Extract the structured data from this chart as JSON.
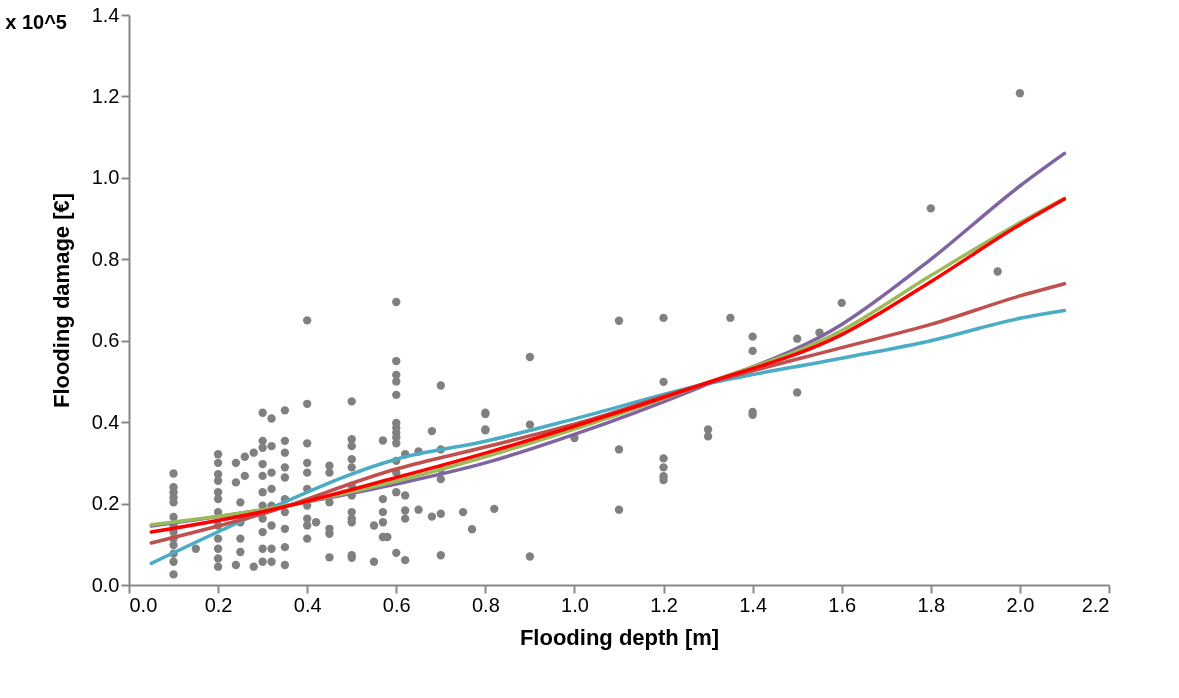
{
  "chart_data": {
    "type": "scatter",
    "xlabel": "Flooding depth [m]",
    "ylabel": "Flooding damage   [€]",
    "annotations": [
      "x 10^5"
    ],
    "xlim": [
      0,
      2.2
    ],
    "ylim": [
      0,
      1.4
    ],
    "xticks": [
      {
        "value": 0,
        "label": "0.0"
      },
      0.2,
      0.4,
      0.6,
      0.8,
      {
        "value": 1,
        "label": "1.0"
      },
      1.2,
      1.4,
      1.6,
      1.8,
      {
        "value": 2,
        "label": "2.0"
      },
      2.2
    ],
    "yticks": [
      {
        "value": 0,
        "label": "0.0"
      },
      0.2,
      0.4,
      0.6,
      0.8,
      {
        "value": 1,
        "label": "1.0"
      },
      1.2,
      1.4
    ],
    "grid": false,
    "line_style": "solid",
    "series": [
      {
        "marker": "circle",
        "color": "#808080",
        "x": [
          0.1,
          0.1,
          0.1,
          0.1,
          0.1,
          0.1,
          0.1,
          0.1,
          0.1,
          0.1,
          0.1,
          0.1,
          0.1,
          0.15,
          0.2,
          0.2,
          0.2,
          0.2,
          0.2,
          0.2,
          0.2,
          0.2,
          0.2,
          0.2,
          0.2,
          0.2,
          0.26,
          0.24,
          0.26,
          0.24,
          0.25,
          0.25,
          0.25,
          0.25,
          0.24,
          0.28,
          0.28,
          0.3,
          0.3,
          0.3,
          0.3,
          0.3,
          0.3,
          0.3,
          0.3,
          0.3,
          0.3,
          0.3,
          0.32,
          0.32,
          0.32,
          0.32,
          0.32,
          0.32,
          0.32,
          0.32,
          0.35,
          0.35,
          0.35,
          0.35,
          0.35,
          0.35,
          0.35,
          0.35,
          0.35,
          0.35,
          0.4,
          0.4,
          0.4,
          0.4,
          0.4,
          0.4,
          0.4,
          0.4,
          0.4,
          0.4,
          0.42,
          0.45,
          0.45,
          0.45,
          0.45,
          0.45,
          0.45,
          0.5,
          0.5,
          0.5,
          0.5,
          0.5,
          0.5,
          0.5,
          0.5,
          0.5,
          0.5,
          0.5,
          0.5,
          0.55,
          0.55,
          0.57,
          0.57,
          0.57,
          0.57,
          0.57,
          0.58,
          0.6,
          0.6,
          0.6,
          0.6,
          0.6,
          0.6,
          0.6,
          0.6,
          0.6,
          0.6,
          0.6,
          0.6,
          0.6,
          0.6,
          0.62,
          0.62,
          0.62,
          0.62,
          0.62,
          0.65,
          0.65,
          0.68,
          0.68,
          0.7,
          0.7,
          0.7,
          0.7,
          0.7,
          0.7,
          0.75,
          0.77,
          0.8,
          0.8,
          0.8,
          0.8,
          0.82,
          0.9,
          0.9,
          0.9,
          1.0,
          1.1,
          1.1,
          1.1,
          1.2,
          1.2,
          1.2,
          1.2,
          1.2,
          1.2,
          1.3,
          1.3,
          1.35,
          1.4,
          1.4,
          1.4,
          1.4,
          1.5,
          1.5,
          1.55,
          1.6,
          1.8,
          1.95,
          2.0
        ],
        "values": [
          0.274,
          0.24,
          0.228,
          0.215,
          0.203,
          0.167,
          0.146,
          0.13,
          0.114,
          0.098,
          0.077,
          0.057,
          0.026,
          0.089,
          0.321,
          0.3,
          0.272,
          0.256,
          0.228,
          0.211,
          0.179,
          0.146,
          0.114,
          0.089,
          0.065,
          0.045,
          0.315,
          0.3,
          0.268,
          0.252,
          0.203,
          0.154,
          0.114,
          0.081,
          0.049,
          0.325,
          0.045,
          0.423,
          0.354,
          0.337,
          0.297,
          0.268,
          0.228,
          0.195,
          0.163,
          0.13,
          0.089,
          0.057,
          0.409,
          0.341,
          0.276,
          0.236,
          0.195,
          0.146,
          0.089,
          0.057,
          0.429,
          0.354,
          0.325,
          0.289,
          0.264,
          0.211,
          0.179,
          0.138,
          0.093,
          0.049,
          0.65,
          0.445,
          0.348,
          0.3,
          0.276,
          0.236,
          0.195,
          0.163,
          0.146,
          0.114,
          0.154,
          0.293,
          0.276,
          0.203,
          0.138,
          0.126,
          0.068,
          0.451,
          0.358,
          0.341,
          0.309,
          0.289,
          0.244,
          0.22,
          0.179,
          0.163,
          0.154,
          0.073,
          0.067,
          0.146,
          0.057,
          0.355,
          0.211,
          0.179,
          0.154,
          0.118,
          0.118,
          0.695,
          0.55,
          0.516,
          0.5,
          0.467,
          0.398,
          0.386,
          0.374,
          0.362,
          0.348,
          0.305,
          0.276,
          0.228,
          0.079,
          0.321,
          0.22,
          0.183,
          0.163,
          0.061,
          0.328,
          0.185,
          0.378,
          0.168,
          0.49,
          0.333,
          0.285,
          0.26,
          0.175,
          0.073,
          0.179,
          0.137,
          0.423,
          0.382,
          0.42,
          0.38,
          0.187,
          0.56,
          0.394,
          0.07,
          0.361,
          0.649,
          0.333,
          0.185,
          0.656,
          0.499,
          0.311,
          0.289,
          0.267,
          0.258,
          0.382,
          0.365,
          0.656,
          0.61,
          0.575,
          0.425,
          0.418,
          0.605,
          0.473,
          0.62,
          0.693,
          0.925,
          0.77,
          1.208
        ]
      },
      {
        "type": "line",
        "color": "#4bacc6",
        "x": [
          0.05,
          0.3,
          0.6,
          0.8,
          1.0,
          1.28,
          1.6,
          1.8,
          2.0,
          2.1
        ],
        "values": [
          0.053,
          0.18,
          0.309,
          0.353,
          0.408,
          0.49,
          0.557,
          0.6,
          0.655,
          0.674
        ]
      },
      {
        "type": "line",
        "color": "#c0504d",
        "x": [
          0.05,
          0.3,
          0.6,
          0.8,
          1.0,
          1.28,
          1.6,
          1.8,
          2.0,
          2.1
        ],
        "values": [
          0.103,
          0.175,
          0.285,
          0.339,
          0.395,
          0.49,
          0.583,
          0.64,
          0.71,
          0.74
        ]
      },
      {
        "type": "line",
        "color": "#8064a2",
        "x": [
          0.05,
          0.3,
          0.6,
          0.8,
          1.0,
          1.28,
          1.6,
          1.8,
          2.0,
          2.1
        ],
        "values": [
          0.145,
          0.185,
          0.248,
          0.3,
          0.37,
          0.485,
          0.64,
          0.8,
          0.98,
          1.06
        ]
      },
      {
        "type": "line",
        "color": "#9bbb59",
        "x": [
          0.05,
          0.3,
          0.6,
          0.8,
          1.0,
          1.28,
          1.6,
          1.8,
          2.0,
          2.1
        ],
        "values": [
          0.148,
          0.185,
          0.255,
          0.315,
          0.383,
          0.49,
          0.625,
          0.76,
          0.89,
          0.95
        ]
      },
      {
        "type": "line",
        "color": "#ff0000",
        "x": [
          0.05,
          0.3,
          0.6,
          0.8,
          1.0,
          1.28,
          1.6,
          1.8,
          2.0,
          2.1
        ],
        "values": [
          0.13,
          0.18,
          0.264,
          0.324,
          0.39,
          0.49,
          0.615,
          0.745,
          0.885,
          0.948
        ]
      }
    ]
  }
}
